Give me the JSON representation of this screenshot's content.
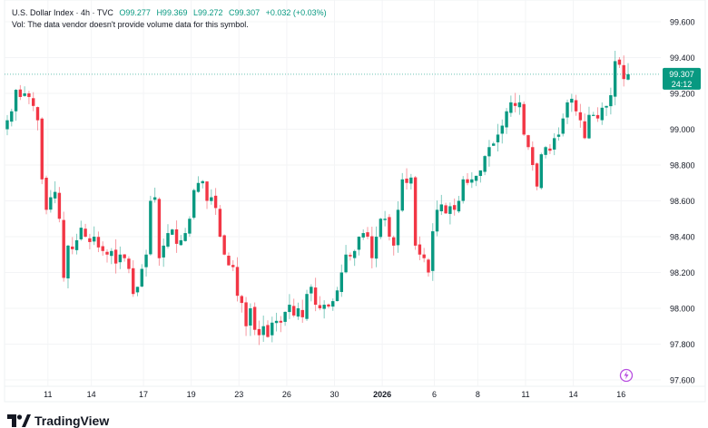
{
  "header": {
    "symbol": "U.S. Dollar Index · 4h · TVC",
    "open": "O99.277",
    "high": "H99.369",
    "low": "L99.272",
    "close": "C99.307",
    "change": "+0.032 (+0.03%)",
    "volume_note": "Vol: The data vendor doesn't provide volume data for this symbol."
  },
  "price_label": {
    "value": "99.307",
    "countdown": "24:12"
  },
  "brand": "TradingView",
  "colors": {
    "up": "#089981",
    "down": "#F23645",
    "accent": "#089981",
    "event": "#B84FE0"
  },
  "chart_data": {
    "type": "candlestick",
    "title": "U.S. Dollar Index · 4h · TVC",
    "ylim": [
      97.6,
      99.6
    ],
    "y_ticks": [
      "99.600",
      "99.400",
      "99.200",
      "99.000",
      "98.800",
      "98.600",
      "98.400",
      "98.200",
      "98.000",
      "97.800",
      "97.600"
    ],
    "x_ticks": [
      {
        "label": "11",
        "index": 10
      },
      {
        "label": "14",
        "index": 20
      },
      {
        "label": "17",
        "index": 32
      },
      {
        "label": "19",
        "index": 43
      },
      {
        "label": "23",
        "index": 54
      },
      {
        "label": "26",
        "index": 65
      },
      {
        "label": "30",
        "index": 76
      },
      {
        "label": "2026",
        "index": 87,
        "bold": true
      },
      {
        "label": "6",
        "index": 99
      },
      {
        "label": "8",
        "index": 109
      },
      {
        "label": "11",
        "index": 120
      },
      {
        "label": "14",
        "index": 131
      },
      {
        "label": "16",
        "index": 142
      }
    ],
    "last": {
      "open": 99.277,
      "high": 99.369,
      "low": 99.272,
      "close": 99.307
    },
    "closes": [
      99.05,
      99.1,
      99.22,
      99.18,
      99.2,
      99.18,
      99.13,
      99.05,
      98.72,
      98.55,
      98.62,
      98.65,
      98.5,
      98.17,
      98.35,
      98.33,
      98.38,
      98.45,
      98.4,
      98.37,
      98.4,
      98.34,
      98.32,
      98.3,
      98.32,
      98.25,
      98.3,
      98.28,
      98.22,
      98.08,
      98.12,
      98.22,
      98.3,
      98.6,
      98.62,
      98.28,
      98.35,
      98.42,
      98.44,
      98.36,
      98.38,
      98.42,
      98.5,
      98.66,
      98.7,
      98.71,
      98.6,
      98.62,
      98.56,
      98.4,
      98.3,
      98.24,
      98.23,
      98.07,
      98.03,
      97.9,
      98.0,
      97.88,
      97.85,
      97.9,
      97.84,
      97.92,
      97.93,
      97.92,
      97.98,
      98.02,
      97.96,
      98.0,
      97.95,
      98.08,
      98.12,
      98.02,
      98.0,
      98.02,
      98.01,
      98.04,
      98.1,
      98.2,
      98.3,
      98.29,
      98.32,
      98.4,
      98.42,
      98.4,
      98.28,
      98.4,
      98.5,
      98.5,
      98.4,
      98.35,
      98.55,
      98.72,
      98.7,
      98.73,
      98.35,
      98.3,
      98.28,
      98.2,
      98.43,
      98.55,
      98.58,
      98.53,
      98.57,
      98.55,
      98.6,
      98.72,
      98.7,
      98.72,
      98.74,
      98.77,
      98.85,
      98.9,
      98.92,
      98.97,
      99.02,
      99.1,
      99.15,
      99.13,
      99.15,
      98.97,
      98.9,
      98.8,
      98.68,
      98.86,
      98.9,
      98.88,
      98.95,
      98.97,
      99.06,
      99.15,
      99.17,
      99.1,
      99.05,
      98.95,
      99.08,
      99.08,
      99.06,
      99.12,
      99.13,
      99.19,
      99.38,
      99.36,
      99.28,
      99.307
    ]
  }
}
